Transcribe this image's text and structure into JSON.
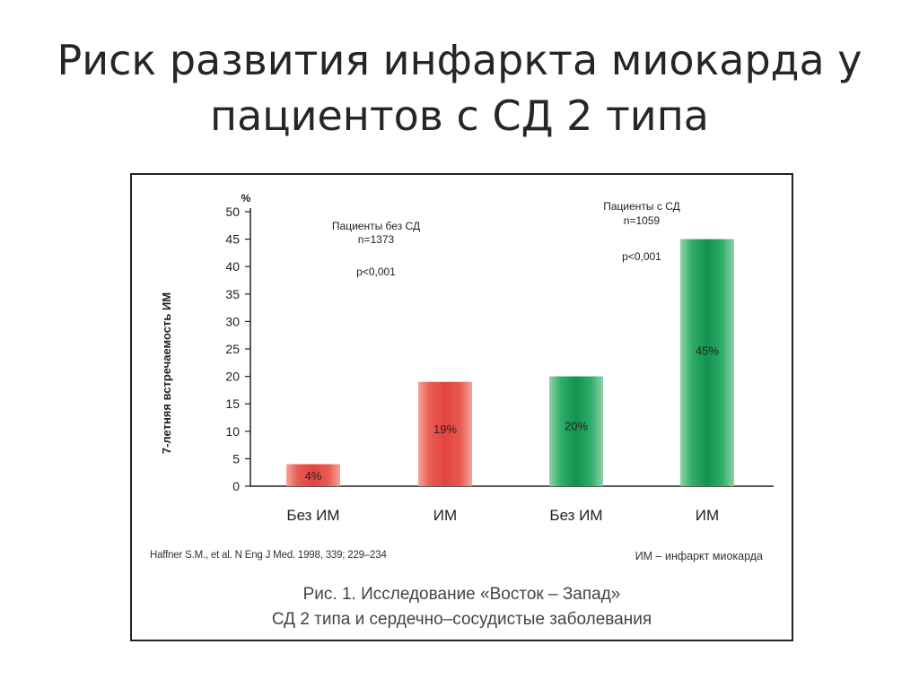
{
  "slide": {
    "title_line1": "Риск развития инфаркта миокарда у",
    "title_line2": "пациентов с СД 2 типа"
  },
  "chart_data": {
    "type": "bar",
    "categories": [
      "Без ИМ",
      "ИМ",
      "Без ИМ",
      "ИМ"
    ],
    "values": [
      4,
      19,
      20,
      45
    ],
    "data_labels": [
      "4%",
      "19%",
      "20%",
      "45%"
    ],
    "ylabel": "7-летняя встречаемость ИМ",
    "yunit": "%",
    "ylim": [
      0,
      50
    ],
    "yticks": [
      0,
      5,
      10,
      15,
      20,
      25,
      30,
      35,
      40,
      45,
      50
    ],
    "grid": false,
    "bar_colors": [
      "#e8504a",
      "#e8504a",
      "#1a9a58",
      "#1a9a58"
    ],
    "groups": [
      {
        "label": "Пациенты без СД",
        "n": "n=1373",
        "p": "p<0,001"
      },
      {
        "label": "Пациенты с СД",
        "n": "n=1059",
        "p": "p<0,001"
      }
    ]
  },
  "footer": {
    "reference": "Haffner S.M., et al. N Eng J Med. 1998, 339; 229–234",
    "abbreviation": "ИМ – инфаркт миокарда"
  },
  "caption": {
    "line1": "Рис. 1. Исследование «Восток – Запад»",
    "line2": "СД 2 типа и сердечно–сосудистые заболевания"
  }
}
